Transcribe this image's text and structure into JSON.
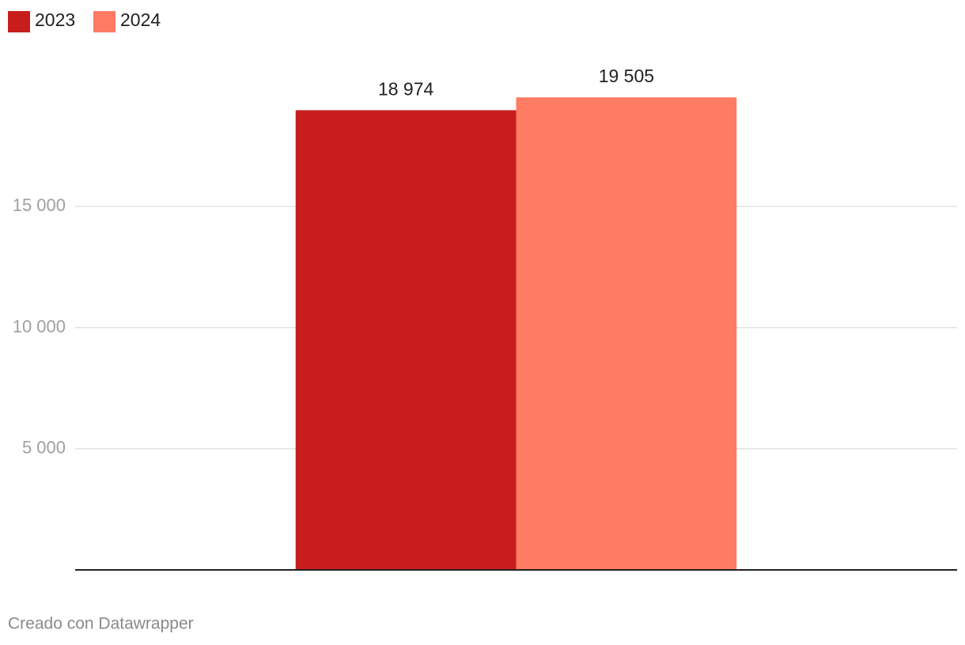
{
  "chart_data": {
    "type": "bar",
    "categories": [
      null
    ],
    "series": [
      {
        "name": "2023",
        "color": "#c71e1d",
        "values": [
          18974
        ],
        "value_labels": [
          "18 974"
        ]
      },
      {
        "name": "2024",
        "color": "#ff7b63",
        "values": [
          19505
        ],
        "value_labels": [
          "19 505"
        ]
      }
    ],
    "ylim": [
      0,
      20000
    ],
    "yticks": [
      {
        "value": 5000,
        "label": "5 000"
      },
      {
        "value": 10000,
        "label": "10 000"
      },
      {
        "value": 15000,
        "label": "15 000"
      }
    ],
    "grid": true,
    "legend": "top-left",
    "footer": "Creado con Datawrapper"
  }
}
